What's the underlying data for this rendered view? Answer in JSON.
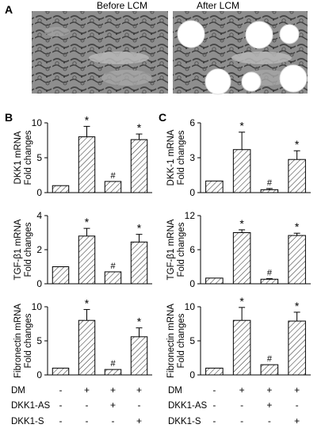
{
  "panel_a": {
    "letter": "A",
    "images": [
      {
        "caption": "Before LCM",
        "circles": 0
      },
      {
        "caption": "After LCM",
        "circles": 6
      }
    ]
  },
  "chart_data": [
    {
      "type": "bar",
      "panel": "B",
      "ylabel": "DKK1 mRNA\nFold changes",
      "ylim": [
        0,
        10
      ],
      "ticks": [
        0,
        5,
        10
      ],
      "categories": [
        "1",
        "2",
        "3",
        "4"
      ],
      "values": [
        1,
        8.0,
        1.6,
        7.6
      ],
      "errors": [
        0,
        1.5,
        0,
        0.8
      ],
      "annotations": [
        "",
        "*",
        "#",
        "*"
      ]
    },
    {
      "type": "bar",
      "panel": "B",
      "ylabel": "TGF-β1 mRNA\nFold changes",
      "ylim": [
        0,
        4
      ],
      "ticks": [
        0,
        2,
        4
      ],
      "categories": [
        "1",
        "2",
        "3",
        "4"
      ],
      "values": [
        1,
        2.8,
        0.7,
        2.45
      ],
      "errors": [
        0,
        0.45,
        0,
        0.45
      ],
      "annotations": [
        "",
        "*",
        "#",
        "*"
      ]
    },
    {
      "type": "bar",
      "panel": "B",
      "ylabel": "Fibronectin mRNA\nFold changes",
      "ylim": [
        0,
        10
      ],
      "ticks": [
        0,
        5,
        10
      ],
      "categories": [
        "1",
        "2",
        "3",
        "4"
      ],
      "values": [
        1,
        8.0,
        0.8,
        5.6
      ],
      "errors": [
        0,
        1.6,
        0,
        1.3
      ],
      "annotations": [
        "",
        "*",
        "#",
        "*"
      ]
    },
    {
      "type": "bar",
      "panel": "C",
      "ylabel": "DKK-1 mRNA\nFold changes",
      "ylim": [
        0,
        6
      ],
      "ticks": [
        0,
        3,
        6
      ],
      "categories": [
        "1",
        "2",
        "3",
        "4"
      ],
      "values": [
        1,
        3.7,
        0.25,
        2.85
      ],
      "errors": [
        0,
        1.5,
        0.1,
        0.75
      ],
      "annotations": [
        "",
        "*",
        "#",
        "*"
      ]
    },
    {
      "type": "bar",
      "panel": "C",
      "ylabel": "TGF-β1 mRNA\nFold changes",
      "ylim": [
        0,
        12
      ],
      "ticks": [
        0,
        6,
        12
      ],
      "categories": [
        "1",
        "2",
        "3",
        "4"
      ],
      "values": [
        1,
        9.0,
        0.8,
        8.5
      ],
      "errors": [
        0,
        0.5,
        0.1,
        0.4
      ],
      "annotations": [
        "",
        "*",
        "#",
        "*"
      ]
    },
    {
      "type": "bar",
      "panel": "C",
      "ylabel": "Fibronectin mRNA\nFold changes",
      "ylim": [
        0,
        10
      ],
      "ticks": [
        0,
        5,
        10
      ],
      "categories": [
        "1",
        "2",
        "3",
        "4"
      ],
      "values": [
        1,
        8.0,
        1.5,
        7.9
      ],
      "errors": [
        0,
        1.9,
        0,
        1.3
      ],
      "annotations": [
        "",
        "*",
        "#",
        "*"
      ]
    }
  ],
  "panels": [
    {
      "letter": "B",
      "conditions": [
        {
          "label": "DM",
          "marks": [
            "-",
            "+",
            "+",
            "+"
          ]
        },
        {
          "label": "DKK1-AS",
          "marks": [
            "-",
            "-",
            "+",
            "-"
          ]
        },
        {
          "label": "DKK1-S",
          "marks": [
            "-",
            "-",
            "-",
            "+"
          ]
        }
      ]
    },
    {
      "letter": "C",
      "conditions": [
        {
          "label": "DM",
          "marks": [
            "-",
            "+",
            "+",
            "+"
          ]
        },
        {
          "label": "DKK1-AS",
          "marks": [
            "-",
            "-",
            "+",
            "-"
          ]
        },
        {
          "label": "DKK1-S",
          "marks": [
            "-",
            "-",
            "-",
            "+"
          ]
        }
      ]
    }
  ],
  "colors": {
    "bar_fill": "#ffffff",
    "hatch": "#333333",
    "axis": "#000000",
    "tissue_bg": "#8a8a8a",
    "tissue_dark": "#4a4a4a"
  }
}
